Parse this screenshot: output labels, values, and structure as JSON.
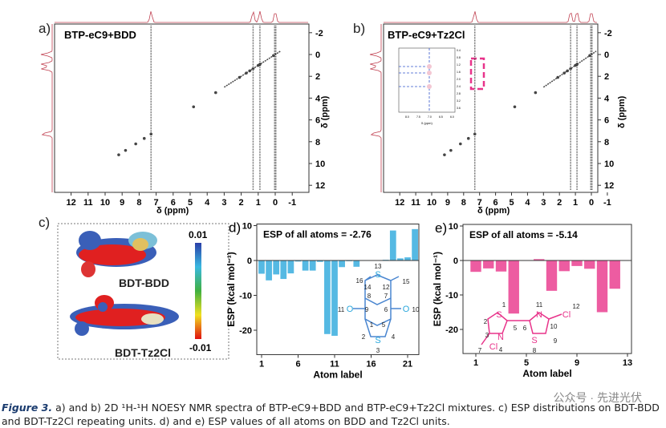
{
  "panels": {
    "a": {
      "label": "a)",
      "title": "BTP-eC9+BDD",
      "xlabel": "δ (ppm)",
      "ylabel": "δ (ppm)"
    },
    "b": {
      "label": "b)",
      "title": "BTP-eC9+Tz2Cl",
      "xlabel": "δ (ppm)",
      "ylabel": "δ (ppm)",
      "inset_xlabel": "δ (ppm)",
      "inset_xticks": [
        "8.0",
        "7.5",
        "7.0",
        "6.5",
        "6.0"
      ],
      "inset_yticks": [
        "0.4",
        "0.8",
        "1.2",
        "1.6",
        "2.0",
        "2.4",
        "2.8",
        "3.2",
        "3.6"
      ]
    },
    "c": {
      "label": "c)",
      "mol1": "BDT-BDD",
      "mol2": "BDT-Tz2Cl",
      "scale_max": "0.01",
      "scale_min": "-0.01"
    }
  },
  "nmr_axes": {
    "xticks": [
      "12",
      "11",
      "10",
      "9",
      "8",
      "7",
      "6",
      "5",
      "4",
      "3",
      "2",
      "1",
      "0",
      "-1"
    ],
    "yticks": [
      "-2",
      "0",
      "2",
      "4",
      "6",
      "8",
      "10",
      "12"
    ]
  },
  "chart_data": [
    {
      "type": "bar",
      "panel": "d)",
      "annotation": "ESP of all atoms = -2.76",
      "xlabel": "Atom label",
      "ylabel": "ESP (kcal mol⁻¹)",
      "ylim": [
        -27,
        10
      ],
      "yticks": [
        "10",
        "0",
        "-10",
        "-20"
      ],
      "xticks": [
        "1",
        "6",
        "11",
        "16",
        "21"
      ],
      "xtick_values": [
        1,
        6,
        11,
        16,
        21
      ],
      "ytick_values": [
        10,
        0,
        -10,
        -20
      ],
      "color": "#2aa7dc",
      "x": [
        1,
        2,
        3,
        4,
        5,
        6,
        7,
        8,
        9,
        10,
        11,
        12,
        13,
        14,
        15,
        16,
        17,
        18,
        19,
        20,
        21,
        22
      ],
      "values": [
        -3.8,
        -5.7,
        -4.0,
        -5.3,
        -3.7,
        -0.3,
        -2.9,
        -2.9,
        -0.4,
        -21.1,
        -21.6,
        -1.9,
        -0.2,
        -1.8,
        0,
        0,
        0,
        0.2,
        8.6,
        0.6,
        0.9,
        9.0
      ],
      "structure_labels": [
        "13",
        "S",
        "16",
        "15",
        "14",
        "12",
        "8",
        "7",
        "11",
        "O",
        "9",
        "6",
        "O",
        "10",
        "1",
        "5",
        "2",
        "4",
        "S",
        "3"
      ]
    },
    {
      "type": "bar",
      "panel": "e)",
      "annotation": "ESP of all atoms = -5.14",
      "xlabel": "Atom label",
      "ylabel": "ESP (kcal mol⁻¹)",
      "ylim": [
        -27,
        10
      ],
      "yticks": [
        "10",
        "0",
        "-10",
        "-20"
      ],
      "xticks": [
        "1",
        "5",
        "9",
        "13"
      ],
      "xtick_values": [
        1,
        5,
        9,
        13
      ],
      "ytick_values": [
        10,
        0,
        -10,
        -20
      ],
      "color": "#e8338a",
      "x": [
        1,
        2,
        3,
        4,
        5,
        6,
        7,
        8,
        9,
        10,
        11,
        12
      ],
      "values": [
        -3.3,
        -2.3,
        -3.2,
        -15.4,
        0,
        0.4,
        -8.8,
        -3.1,
        -1.6,
        -2.4,
        -15.0,
        -8.2
      ],
      "structure_labels": [
        "1",
        "S",
        "11",
        "N",
        "Cl",
        "12",
        "2",
        "5",
        "6",
        "10",
        "3",
        "N",
        "S",
        "9",
        "Cl",
        "7",
        "4",
        "8"
      ]
    },
    {
      "type": "scatter",
      "panel": "a) 2D NOESY",
      "diagonal_peaks_ppm": [
        9.2,
        8.8,
        8.2,
        7.7,
        7.3,
        4.8,
        3.5,
        2.1,
        1.7,
        1.5,
        1.3,
        1.0,
        0.9,
        0.1
      ],
      "vertical_streaks_ppm": [
        7.3,
        1.3,
        0.9,
        0.0
      ]
    },
    {
      "type": "scatter",
      "panel": "b) 2D NOESY",
      "diagonal_peaks_ppm": [
        9.2,
        8.8,
        8.2,
        7.7,
        7.3,
        4.8,
        3.5,
        2.1,
        1.7,
        1.5,
        1.3,
        1.0,
        0.9,
        0.1
      ],
      "vertical_streaks_ppm": [
        7.3,
        1.3,
        0.9,
        0.0
      ]
    }
  ],
  "caption": {
    "fig": "Figure 3.",
    "text": " a) and b) 2D ¹H-¹H NOESY NMR spectra of BTP-eC9+BDD and BTP-eC9+Tz2Cl mixtures. c) ESP distributions on BDT-BDD and BDT-Tz2Cl repeating units. d) and e) ESP values of all atoms on BDD and Tz2Cl units."
  },
  "watermark": "公众号 · 先进光伏"
}
